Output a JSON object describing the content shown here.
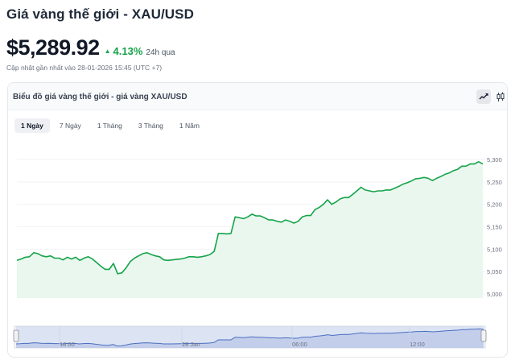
{
  "header": {
    "title": "Giá vàng thế giới - XAU/USD",
    "price": "$5,289.92",
    "change_arrow": "▲",
    "change_pct": "4.13%",
    "change_period": "24h qua",
    "updated": "Cập nhật gần nhất vào 28-01-2026 15:45 (UTC +7)"
  },
  "card": {
    "title": "Biểu đồ giá vàng thế giới - giá vàng XAU/USD",
    "view_buttons": [
      "line-chart-icon",
      "candlestick-icon"
    ],
    "tabs": [
      {
        "label": "1 Ngày",
        "active": true
      },
      {
        "label": "7 Ngày",
        "active": false
      },
      {
        "label": "1 Tháng",
        "active": false
      },
      {
        "label": "3 Tháng",
        "active": false
      },
      {
        "label": "1 Năm",
        "active": false
      }
    ]
  },
  "colors": {
    "line": "#16a34a",
    "area": "#e9f7ee",
    "accent_green": "#16a34a",
    "navigator_fill": "#c9d3ec",
    "navigator_line": "#4a6fc0"
  },
  "chart_data": {
    "type": "area",
    "ylim": [
      5000,
      5320
    ],
    "yticks": [
      "5,300",
      "5,250",
      "5,200",
      "5,150",
      "5,100",
      "5,050",
      "5,000"
    ],
    "ytick_values": [
      5300,
      5250,
      5200,
      5150,
      5100,
      5050,
      5000
    ],
    "navigator_labels": [
      "18:00",
      "28 Jan",
      "06:00",
      "12:00"
    ],
    "values": [
      5075,
      5078,
      5082,
      5083,
      5092,
      5090,
      5085,
      5083,
      5085,
      5080,
      5080,
      5076,
      5082,
      5078,
      5082,
      5075,
      5080,
      5083,
      5078,
      5070,
      5062,
      5055,
      5055,
      5068,
      5045,
      5047,
      5058,
      5072,
      5080,
      5085,
      5090,
      5092,
      5088,
      5085,
      5083,
      5076,
      5075,
      5076,
      5077,
      5078,
      5080,
      5083,
      5083,
      5082,
      5083,
      5085,
      5088,
      5095,
      5135,
      5135,
      5134,
      5135,
      5172,
      5170,
      5168,
      5172,
      5178,
      5174,
      5174,
      5170,
      5165,
      5165,
      5162,
      5160,
      5165,
      5162,
      5158,
      5162,
      5172,
      5175,
      5175,
      5188,
      5193,
      5200,
      5210,
      5200,
      5205,
      5212,
      5215,
      5215,
      5222,
      5230,
      5238,
      5232,
      5230,
      5228,
      5230,
      5230,
      5232,
      5232,
      5236,
      5240,
      5245,
      5248,
      5252,
      5257,
      5258,
      5260,
      5258,
      5253,
      5258,
      5262,
      5267,
      5270,
      5275,
      5278,
      5285,
      5285,
      5290,
      5290,
      5295,
      5289.92
    ]
  }
}
